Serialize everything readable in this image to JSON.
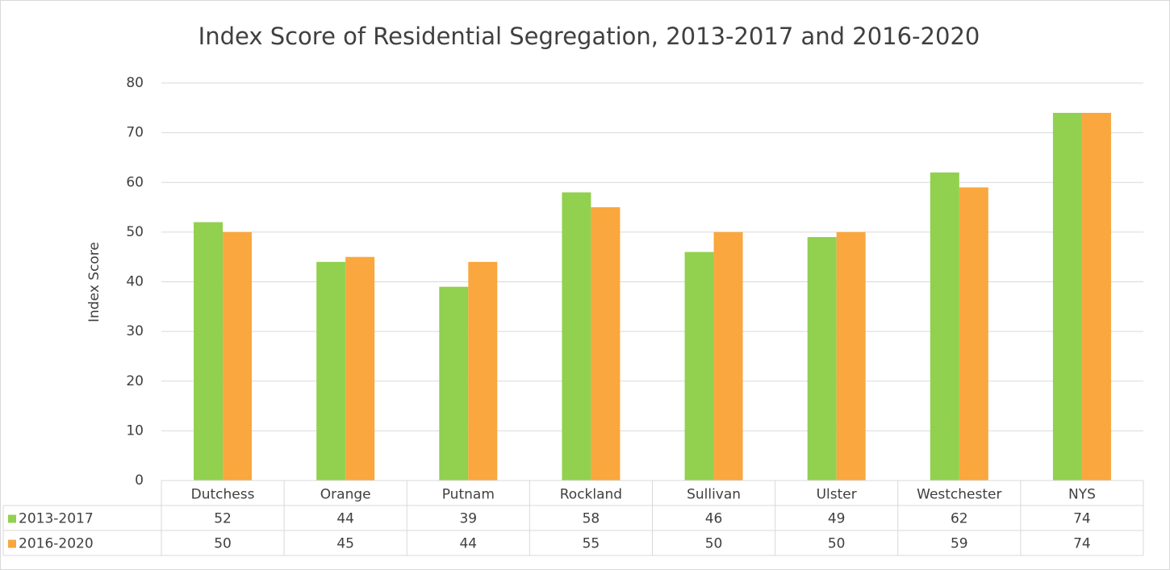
{
  "chart_data": {
    "type": "bar",
    "title": "Index Score of Residential Segregation, 2013-2017 and 2016-2020",
    "y_label": "Index Score",
    "categories": [
      "Dutchess",
      "Orange",
      "Putnam",
      "Rockland",
      "Sullivan",
      "Ulster",
      "Westchester",
      "NYS"
    ],
    "series": [
      {
        "name": "2013-2017",
        "color": "#92d050",
        "values": [
          52,
          44,
          39,
          58,
          46,
          49,
          62,
          74
        ]
      },
      {
        "name": "2016-2020",
        "color": "#f9a73e",
        "values": [
          50,
          45,
          44,
          55,
          50,
          50,
          59,
          74
        ]
      }
    ],
    "ylim": [
      0,
      80
    ],
    "yticks": [
      0,
      10,
      20,
      30,
      40,
      50,
      60,
      70,
      80
    ],
    "grid": true,
    "data_table": true
  }
}
